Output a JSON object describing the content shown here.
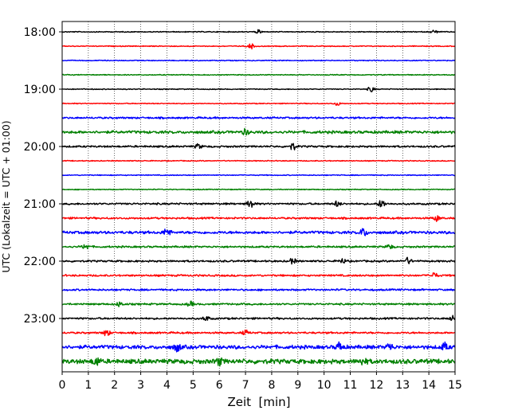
{
  "chart_data": {
    "type": "line",
    "title": "",
    "xlabel": "Zeit  [min]",
    "ylabel": "UTC (Lokalzeit = UTC + 01:00)",
    "xlim": [
      0,
      15
    ],
    "x_ticks": [
      0,
      1,
      2,
      3,
      4,
      5,
      6,
      7,
      8,
      9,
      10,
      11,
      12,
      13,
      14,
      15
    ],
    "x_tick_labels": [
      "0",
      "1",
      "2",
      "3",
      "4",
      "5",
      "6",
      "7",
      "8",
      "9",
      "10",
      "11",
      "12",
      "13",
      "14",
      "15"
    ],
    "y_tick_labels": [
      "18:00",
      "19:00",
      "20:00",
      "21:00",
      "22:00",
      "23:00"
    ],
    "start_time": "18:00",
    "row_interval_min": 15,
    "rows": 24,
    "grid": "vertical-dotted",
    "colors": [
      "#000000",
      "#ff0000",
      "#0000ff",
      "#008000"
    ],
    "row_amplitude": [
      1,
      1,
      1,
      1,
      1,
      1,
      2,
      3,
      2,
      1,
      1,
      1,
      2,
      2,
      3,
      2,
      2,
      2,
      2,
      2,
      2,
      2,
      4,
      5
    ],
    "events": [
      {
        "row": 0,
        "x": 7.5,
        "a": 4
      },
      {
        "row": 0,
        "x": 14.2,
        "a": 4
      },
      {
        "row": 1,
        "x": 7.2,
        "a": 6
      },
      {
        "row": 4,
        "x": 11.8,
        "a": 6
      },
      {
        "row": 5,
        "x": 10.5,
        "a": 4
      },
      {
        "row": 7,
        "x": 7.0,
        "a": 6
      },
      {
        "row": 8,
        "x": 8.8,
        "a": 8
      },
      {
        "row": 8,
        "x": 5.2,
        "a": 5
      },
      {
        "row": 12,
        "x": 7.2,
        "a": 10
      },
      {
        "row": 12,
        "x": 12.2,
        "a": 9
      },
      {
        "row": 12,
        "x": 10.5,
        "a": 6
      },
      {
        "row": 13,
        "x": 14.3,
        "a": 6
      },
      {
        "row": 14,
        "x": 4.0,
        "a": 9
      },
      {
        "row": 14,
        "x": 11.5,
        "a": 9
      },
      {
        "row": 15,
        "x": 0.9,
        "a": 6
      },
      {
        "row": 15,
        "x": 12.5,
        "a": 5
      },
      {
        "row": 16,
        "x": 8.8,
        "a": 6
      },
      {
        "row": 16,
        "x": 13.2,
        "a": 7
      },
      {
        "row": 16,
        "x": 10.7,
        "a": 5
      },
      {
        "row": 17,
        "x": 14.2,
        "a": 6
      },
      {
        "row": 19,
        "x": 4.9,
        "a": 5
      },
      {
        "row": 19,
        "x": 2.2,
        "a": 5
      },
      {
        "row": 20,
        "x": 5.5,
        "a": 5
      },
      {
        "row": 20,
        "x": 14.9,
        "a": 5
      },
      {
        "row": 21,
        "x": 1.7,
        "a": 7
      },
      {
        "row": 21,
        "x": 7.0,
        "a": 5
      },
      {
        "row": 22,
        "x": 4.4,
        "a": 9
      },
      {
        "row": 22,
        "x": 10.6,
        "a": 10
      },
      {
        "row": 22,
        "x": 12.5,
        "a": 8
      },
      {
        "row": 22,
        "x": 14.6,
        "a": 8
      },
      {
        "row": 23,
        "x": 1.3,
        "a": 9
      },
      {
        "row": 23,
        "x": 6.0,
        "a": 7
      },
      {
        "row": 23,
        "x": 11.5,
        "a": 7
      }
    ]
  }
}
